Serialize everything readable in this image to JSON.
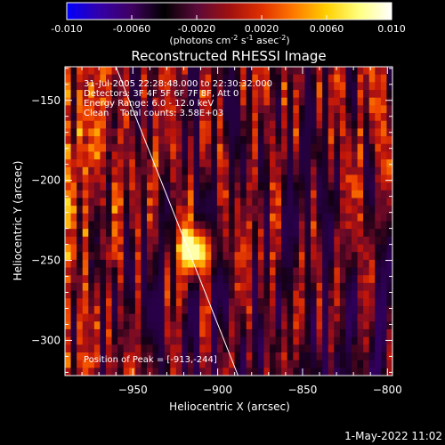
{
  "chart_data": {
    "type": "heatmap",
    "title": "Reconstructed RHESSI Image",
    "xlabel": "Heliocentric X (arcsec)",
    "ylabel": "Heliocentric Y (arcsec)",
    "xlim": [
      -990,
      -797
    ],
    "ylim": [
      -322,
      -129
    ],
    "x_ticks": [
      -950,
      -900,
      -850,
      -800
    ],
    "y_ticks": [
      -150,
      -200,
      -250,
      -300
    ],
    "colorbar": {
      "range": [
        -0.01,
        0.01
      ],
      "ticks": [
        "-0.010",
        "-0.0060",
        "-0.0020",
        "0.0020",
        "0.0060",
        "0.010"
      ],
      "unit_base": "(photons cm",
      "unit_exp1": "-2",
      "unit_mid": " s",
      "unit_exp2": "-1",
      "unit_mid2": " asec",
      "unit_exp3": "-2",
      "unit_end": ")",
      "colors": [
        "#0000ff",
        "#3300aa",
        "#400060",
        "#000000",
        "#5a0a3a",
        "#a01010",
        "#e03000",
        "#ff7a00",
        "#ffd000",
        "#ffff80",
        "#ffffff"
      ]
    },
    "peak": {
      "x": -913,
      "y": -244
    },
    "limb_line": [
      [
        -960,
        -129
      ],
      [
        -888,
        -322
      ]
    ],
    "annotations": [
      "31-Jul-2005 22:28:48.000 to 22:30:32.000",
      "Detectors: 3F 4F 5F 6F 7F 8F, Att 0",
      "Energy Range: 6.0 - 12.0 keV",
      "Clean    Total counts: 3.58E+03"
    ],
    "peak_label": "Position of Peak = [-913,-244]"
  },
  "footer": {
    "timestamp": "1-May-2022 11:02"
  }
}
